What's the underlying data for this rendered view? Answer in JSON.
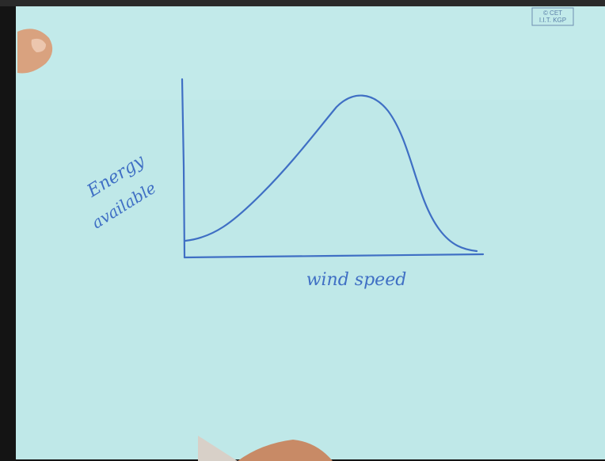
{
  "stamp": [
    "© CET",
    "I.I.T. KGP"
  ],
  "y_label": [
    "Energy",
    "available"
  ],
  "x_label": "wind speed"
}
